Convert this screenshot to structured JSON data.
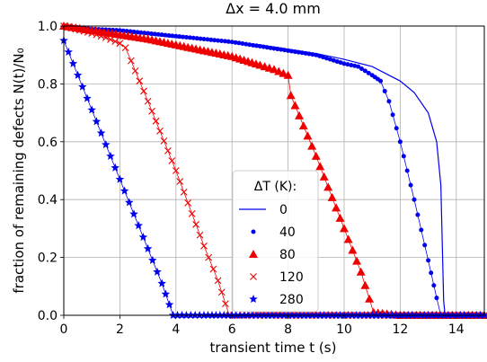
{
  "chart_data": {
    "type": "line",
    "title": "Δx = 4.0 mm",
    "xlabel": "transient time t (s)",
    "ylabel": "fraction of remaining defects N(t)/N₀",
    "xlim": [
      0,
      15
    ],
    "ylim": [
      0,
      1.0
    ],
    "xticks": [
      "0",
      "2",
      "4",
      "6",
      "8",
      "10",
      "12",
      "14"
    ],
    "yticks": [
      "0.0",
      "0.2",
      "0.4",
      "0.6",
      "0.8",
      "1.0"
    ],
    "grid": true,
    "legend": {
      "title": "ΔT (K):",
      "placement": "lower-center"
    },
    "series": [
      {
        "name": "0",
        "marker": "line",
        "color": "#0000ee",
        "x": [
          0,
          1,
          2,
          3,
          4,
          5,
          6,
          7,
          8,
          9,
          10,
          11,
          12,
          12.5,
          13,
          13.3,
          13.45,
          13.5,
          13.55,
          13.6,
          14,
          15
        ],
        "y": [
          1.0,
          0.99,
          0.98,
          0.97,
          0.96,
          0.955,
          0.945,
          0.935,
          0.92,
          0.905,
          0.885,
          0.86,
          0.81,
          0.77,
          0.7,
          0.6,
          0.45,
          0.25,
          0.05,
          0.0,
          0.0,
          0.0
        ]
      },
      {
        "name": "40",
        "marker": "circle",
        "color": "#0000ee",
        "x": [
          0,
          1,
          2,
          3,
          4,
          5,
          6,
          7,
          8,
          9,
          10,
          10.5,
          11,
          11.3,
          11.6,
          12.0,
          12.5,
          13.0,
          13.3,
          13.45,
          14,
          15
        ],
        "y": [
          1.0,
          0.99,
          0.985,
          0.975,
          0.965,
          0.955,
          0.945,
          0.93,
          0.915,
          0.9,
          0.87,
          0.86,
          0.83,
          0.81,
          0.74,
          0.6,
          0.4,
          0.19,
          0.06,
          0.0,
          0.0,
          0.0
        ]
      },
      {
        "name": "80",
        "marker": "triangle",
        "color": "#ee0000",
        "x": [
          0,
          1,
          2,
          3,
          4,
          5,
          6,
          7,
          7.5,
          8.0,
          8.1,
          9.0,
          10.0,
          10.6,
          11.05,
          12,
          13,
          14,
          15
        ],
        "y": [
          1.0,
          0.985,
          0.97,
          0.955,
          0.935,
          0.915,
          0.895,
          0.865,
          0.85,
          0.83,
          0.76,
          0.55,
          0.3,
          0.15,
          0.01,
          0.0,
          0.0,
          0.0,
          0.0
        ]
      },
      {
        "name": "120",
        "marker": "x",
        "color": "#ee0000",
        "x": [
          0,
          1,
          1.5,
          2.0,
          2.2,
          2.4,
          3.0,
          4.0,
          5.0,
          5.5,
          5.9,
          7,
          8,
          9,
          10,
          11,
          12,
          13,
          14,
          15
        ],
        "y": [
          1.0,
          0.975,
          0.96,
          0.94,
          0.925,
          0.88,
          0.74,
          0.5,
          0.24,
          0.12,
          0.0,
          0.0,
          0.0,
          0.0,
          0.0,
          0.0,
          0.0,
          0.0,
          0.0,
          0.0
        ]
      },
      {
        "name": "280",
        "marker": "star",
        "color": "#0000ee",
        "x": [
          0,
          0.5,
          1.0,
          1.5,
          2.0,
          2.5,
          3.0,
          3.5,
          3.9,
          5,
          6,
          7,
          8,
          9,
          10,
          11,
          12,
          13,
          14,
          15
        ],
        "y": [
          0.95,
          0.83,
          0.71,
          0.59,
          0.47,
          0.35,
          0.23,
          0.11,
          0.0,
          0.0,
          0.0,
          0.0,
          0.0,
          0.0,
          0.0,
          0.0,
          0.0,
          0.0,
          0.0,
          0.0
        ]
      }
    ]
  }
}
